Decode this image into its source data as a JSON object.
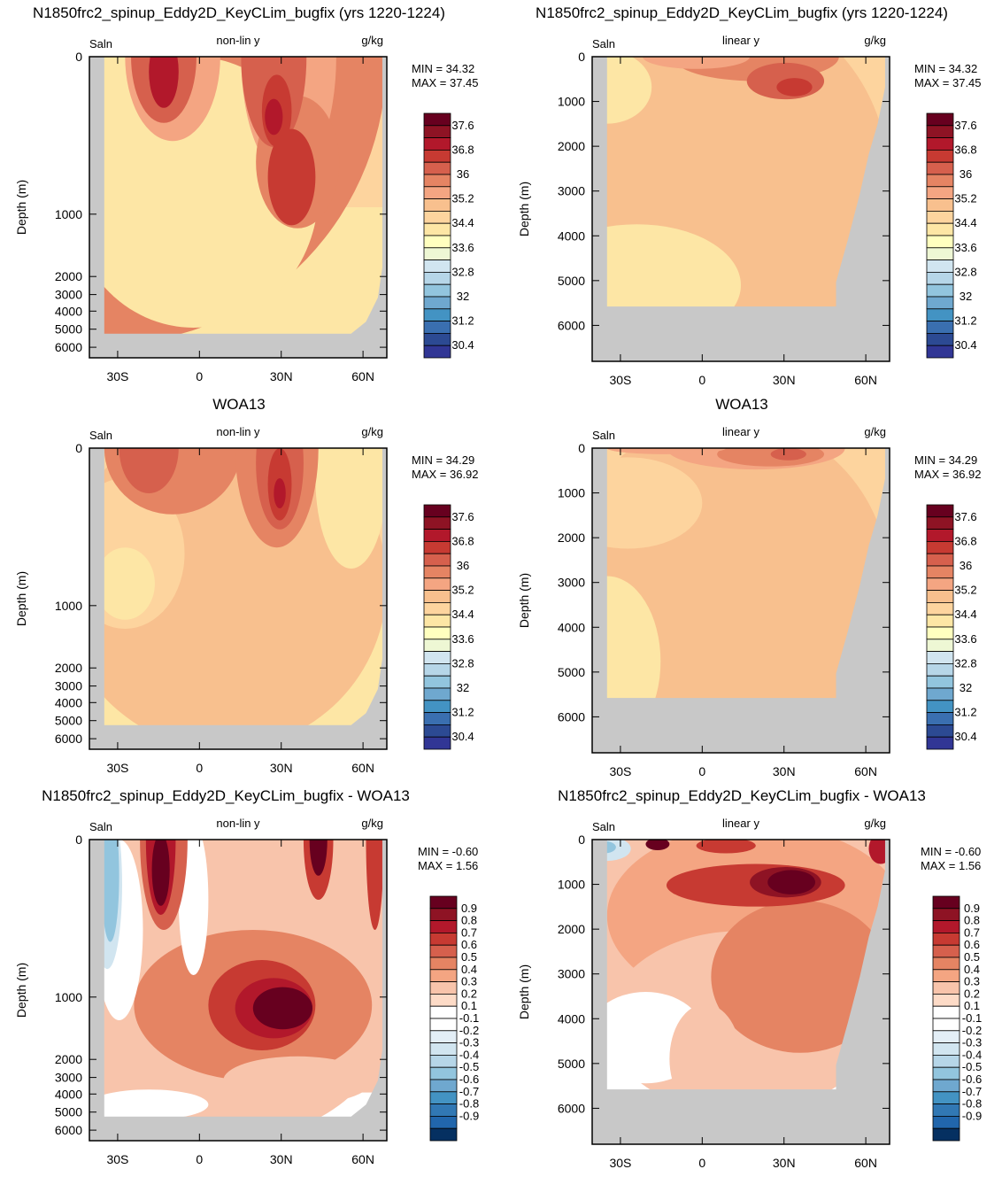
{
  "chart_data": [
    {
      "type": "contour",
      "title": "N1850frc2_spinup_Eddy2D_KeyCLim_bugfix (yrs 1220-1224)",
      "left_label": "Saln",
      "center_label": "non-lin y",
      "right_label": "g/kg",
      "ylabel": "Depth (m)",
      "y_scale": "non-linear",
      "y_ticks": [
        "0",
        "1000",
        "2000",
        "3000",
        "4000",
        "5000",
        "6000"
      ],
      "x_ticks": [
        "30S",
        "0",
        "30N",
        "60N"
      ],
      "min_text": "MIN =  34.32",
      "max_text": "MAX =  37.45",
      "colorbar_labels": [
        "37.6",
        "36.8",
        "36",
        "35.2",
        "34.4",
        "33.6",
        "32.8",
        "32",
        "31.2",
        "30.4"
      ]
    },
    {
      "type": "contour",
      "title": "N1850frc2_spinup_Eddy2D_KeyCLim_bugfix (yrs 1220-1224)",
      "left_label": "Saln",
      "center_label": "linear y",
      "right_label": "g/kg",
      "ylabel": "Depth (m)",
      "y_scale": "linear",
      "y_ticks": [
        "0",
        "1000",
        "2000",
        "3000",
        "4000",
        "5000",
        "6000"
      ],
      "x_ticks": [
        "30S",
        "0",
        "30N",
        "60N"
      ],
      "min_text": "MIN =  34.32",
      "max_text": "MAX =  37.45",
      "colorbar_labels": [
        "37.6",
        "36.8",
        "36",
        "35.2",
        "34.4",
        "33.6",
        "32.8",
        "32",
        "31.2",
        "30.4"
      ]
    },
    {
      "type": "contour",
      "title": "WOA13",
      "left_label": "Saln",
      "center_label": "non-lin y",
      "right_label": "g/kg",
      "ylabel": "Depth (m)",
      "y_scale": "non-linear",
      "y_ticks": [
        "0",
        "1000",
        "2000",
        "3000",
        "4000",
        "5000",
        "6000"
      ],
      "x_ticks": [
        "30S",
        "0",
        "30N",
        "60N"
      ],
      "min_text": "MIN =  34.29",
      "max_text": "MAX =  36.92",
      "colorbar_labels": [
        "37.6",
        "36.8",
        "36",
        "35.2",
        "34.4",
        "33.6",
        "32.8",
        "32",
        "31.2",
        "30.4"
      ]
    },
    {
      "type": "contour",
      "title": "WOA13",
      "left_label": "Saln",
      "center_label": "linear y",
      "right_label": "g/kg",
      "ylabel": "Depth (m)",
      "y_scale": "linear",
      "y_ticks": [
        "0",
        "1000",
        "2000",
        "3000",
        "4000",
        "5000",
        "6000"
      ],
      "x_ticks": [
        "30S",
        "0",
        "30N",
        "60N"
      ],
      "min_text": "MIN =  34.29",
      "max_text": "MAX =  36.92",
      "colorbar_labels": [
        "37.6",
        "36.8",
        "36",
        "35.2",
        "34.4",
        "33.6",
        "32.8",
        "32",
        "31.2",
        "30.4"
      ]
    },
    {
      "type": "contour",
      "title": "N1850frc2_spinup_Eddy2D_KeyCLim_bugfix - WOA13",
      "left_label": "Saln",
      "center_label": "non-lin y",
      "right_label": "g/kg",
      "ylabel": "Depth (m)",
      "y_scale": "non-linear",
      "y_ticks": [
        "0",
        "1000",
        "2000",
        "3000",
        "4000",
        "5000",
        "6000"
      ],
      "x_ticks": [
        "30S",
        "0",
        "30N",
        "60N"
      ],
      "min_text": "MIN =  -0.60",
      "max_text": "MAX =   1.56",
      "colorbar_labels": [
        "0.9",
        "0.8",
        "0.7",
        "0.6",
        "0.5",
        "0.4",
        "0.3",
        "0.2",
        "0.1",
        "-0.1",
        "-0.2",
        "-0.3",
        "-0.4",
        "-0.5",
        "-0.6",
        "-0.7",
        "-0.8",
        "-0.9"
      ]
    },
    {
      "type": "contour",
      "title": "N1850frc2_spinup_Eddy2D_KeyCLim_bugfix - WOA13",
      "left_label": "Saln",
      "center_label": "linear y",
      "right_label": "g/kg",
      "ylabel": "Depth (m)",
      "y_scale": "linear",
      "y_ticks": [
        "0",
        "1000",
        "2000",
        "3000",
        "4000",
        "5000",
        "6000"
      ],
      "x_ticks": [
        "30S",
        "0",
        "30N",
        "60N"
      ],
      "min_text": "MIN =  -0.60",
      "max_text": "MAX =   1.56",
      "colorbar_labels": [
        "0.9",
        "0.8",
        "0.7",
        "0.6",
        "0.5",
        "0.4",
        "0.3",
        "0.2",
        "0.1",
        "-0.1",
        "-0.2",
        "-0.3",
        "-0.4",
        "-0.5",
        "-0.6",
        "-0.7",
        "-0.8",
        "-0.9"
      ]
    }
  ],
  "colors": {
    "land": "#c8c8c8",
    "salinity_scale": [
      "#67001f",
      "#8e1324",
      "#b2182b",
      "#c73a32",
      "#d6604d",
      "#e58463",
      "#f4a582",
      "#f8c08e",
      "#fdd49e",
      "#fde6a5",
      "#ffffbf",
      "#eef7d4",
      "#d1e5f0",
      "#b6d6e8",
      "#92c5de",
      "#6fa8cf",
      "#4393c3",
      "#3a6fb0",
      "#2c4a93",
      "#313695"
    ],
    "diff_scale": [
      "#67001f",
      "#8e1324",
      "#b2182b",
      "#c73a32",
      "#d6604d",
      "#e58463",
      "#f4a582",
      "#f8c4ab",
      "#fddbc7",
      "#ffffff",
      "#ffffff",
      "#e3eef6",
      "#d1e5f0",
      "#b6d6e8",
      "#92c5de",
      "#6fa8cf",
      "#4393c3",
      "#3178b4",
      "#2166ac",
      "#053061"
    ]
  }
}
